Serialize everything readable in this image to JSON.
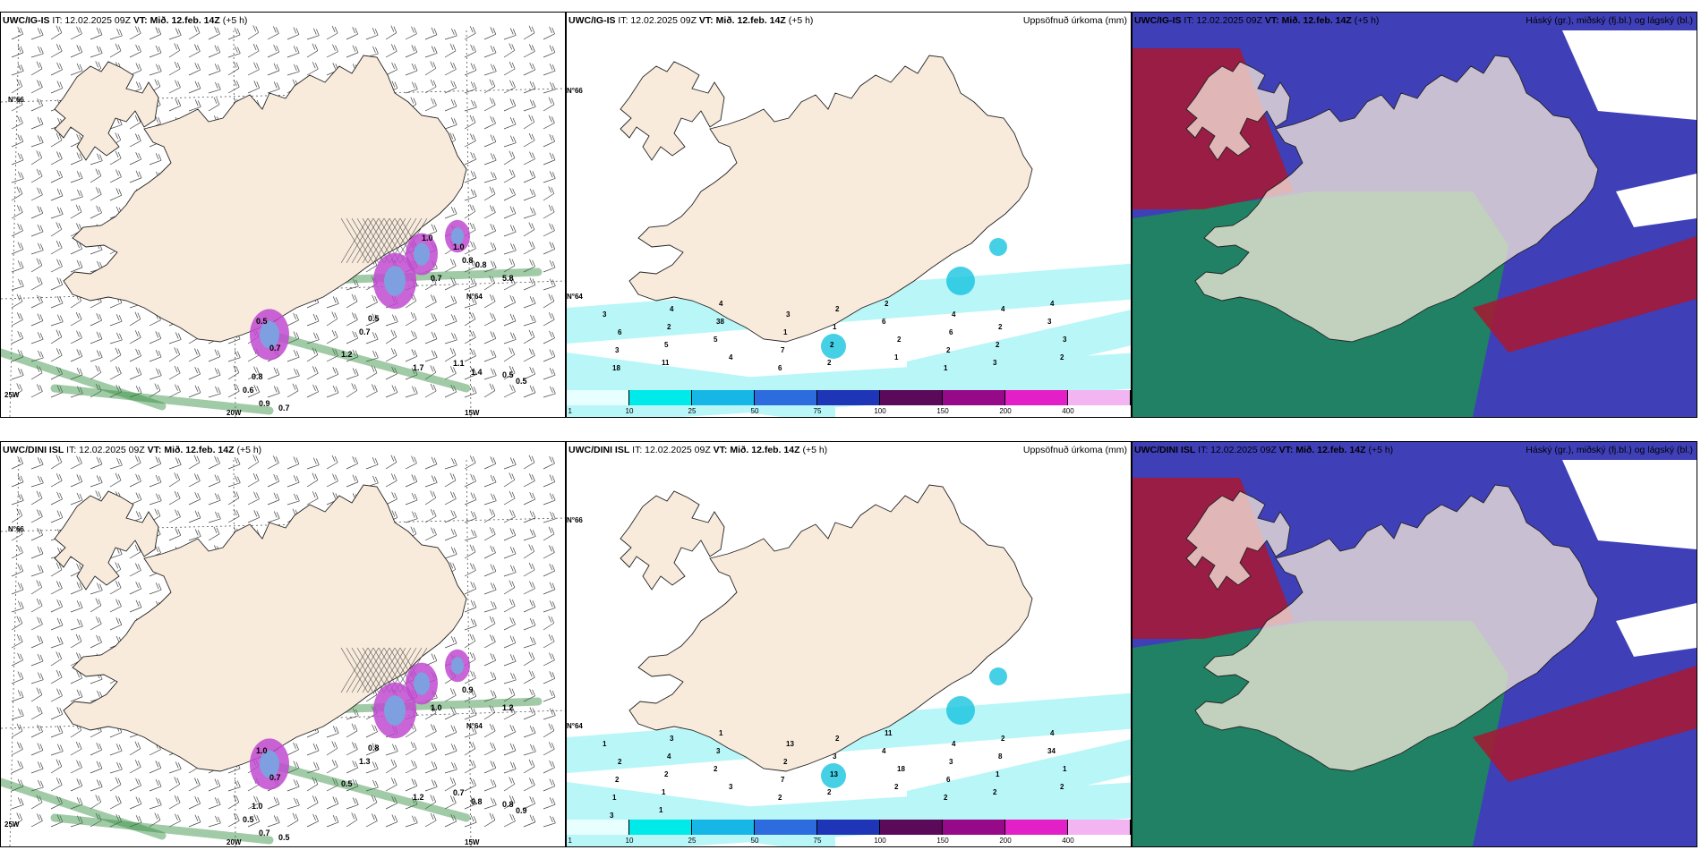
{
  "colors": {
    "land": "#f8ebdc",
    "precip_light": "#b8f6f8",
    "high_cloud": "#a9172f",
    "mid_cloud": "#1f8560",
    "low_cloud": "#3f3fb8",
    "rain_green": "#2e8a3c",
    "snow_magenta": "#c04ad0"
  },
  "panels": [
    {
      "model": "UWC/IG-IS",
      "it": "IT: 12.02.2025 09Z",
      "vt": "VT: Mið. 12.feb. 14Z",
      "lead": "(+5 h)",
      "right_title": "",
      "axis": {
        "lat_top": "N°66",
        "lat_mid": "N°64",
        "lon_left": "25W",
        "lon_a": "20W",
        "lon_b": "15W"
      },
      "contour_labels": [
        "0.5",
        "0.7",
        "0.8",
        "0.6",
        "0.9",
        "0.7",
        "1.2",
        "1.7",
        "1.1",
        "1.4",
        "0.5",
        "0.5",
        "5.8",
        "0.7",
        "0.8",
        "0.7",
        "0.5",
        "1.0",
        "1.0",
        "0.8"
      ]
    },
    {
      "model": "UWC/IG-IS",
      "it": "IT: 12.02.2025 09Z",
      "vt": "VT: Mið. 12.feb. 14Z",
      "lead": "(+5 h)",
      "right_title": "Uppsöfnuð úrkoma (mm)",
      "axis": {
        "lat_top": "N°66",
        "lat_mid": "N°64"
      },
      "values": [
        "3",
        "4",
        "4",
        "3",
        "2",
        "2",
        "4",
        "4",
        "4",
        "6",
        "2",
        "38",
        "1",
        "1",
        "6",
        "6",
        "2",
        "3",
        "3",
        "5",
        "5",
        "7",
        "2",
        "2",
        "2",
        "2",
        "3",
        "18",
        "11",
        "4",
        "6",
        "2",
        "1",
        "1",
        "3",
        "2"
      ]
    },
    {
      "model": "UWC/IG-IS",
      "it": "IT: 12.02.2025 09Z",
      "vt": "VT: Mið. 12.feb. 14Z",
      "lead": "(+5 h)",
      "right_title": "Háský (gr.), miðský (fj.bl.) og lágský (bl.)"
    },
    {
      "model": "UWC/DINI ISL",
      "it": "IT: 12.02.2025 09Z",
      "vt": "VT: Mið. 12.feb. 14Z",
      "lead": "(+5 h)",
      "right_title": "",
      "axis": {
        "lat_top": "N°66",
        "lat_mid": "N°64",
        "lon_left": "25W",
        "lon_a": "20W",
        "lon_b": "15W"
      },
      "contour_labels": [
        "1.0",
        "0.7",
        "1.0",
        "0.5",
        "0.7",
        "0.5",
        "0.5",
        "1.2",
        "0.7",
        "0.8",
        "0.8",
        "0.9",
        "1.2",
        "1.0",
        "0.9",
        "1.3",
        "0.8"
      ]
    },
    {
      "model": "UWC/DINI ISL",
      "it": "IT: 12.02.2025 09Z",
      "vt": "VT: Mið. 12.feb. 14Z",
      "lead": "(+5 h)",
      "right_title": "Uppsöfnuð úrkoma (mm)",
      "axis": {
        "lat_top": "N°66",
        "lat_mid": "N°64"
      },
      "values": [
        "1",
        "3",
        "1",
        "13",
        "2",
        "11",
        "4",
        "2",
        "4",
        "2",
        "4",
        "3",
        "2",
        "3",
        "4",
        "3",
        "8",
        "34",
        "2",
        "2",
        "2",
        "7",
        "13",
        "18",
        "6",
        "1",
        "1",
        "1",
        "1",
        "3",
        "2",
        "2",
        "2",
        "2",
        "2",
        "2",
        "3",
        "1"
      ]
    },
    {
      "model": "UWC/DINI ISL",
      "it": "IT: 12.02.2025 09Z",
      "vt": "VT: Mið. 12.feb. 14Z",
      "lead": "(+5 h)",
      "right_title": "Háský (gr.), miðský (fj.bl.) og lágský (bl.)"
    }
  ],
  "colorbar": {
    "ticks": [
      "1",
      "10",
      "25",
      "50",
      "75",
      "100",
      "150",
      "200",
      "400"
    ],
    "colors": [
      "#e8ffff",
      "#00eaea",
      "#16b7e6",
      "#2d6cde",
      "#1f35b8",
      "#5b0a5a",
      "#960a89",
      "#e31fc8",
      "#f2b5f2"
    ]
  }
}
